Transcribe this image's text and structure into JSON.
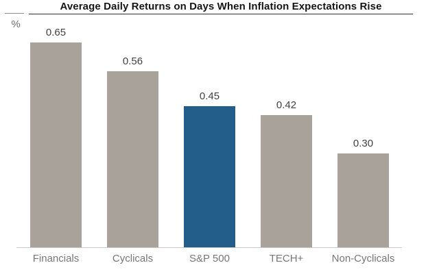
{
  "chart_data": {
    "type": "bar",
    "title": "Average Daily Returns on Days When Inflation Expectations Rise",
    "unit_label": "%",
    "categories": [
      "Financials",
      "Cyclicals",
      "S&P 500",
      "TECH+",
      "Non-Cyclicals"
    ],
    "values": [
      0.65,
      0.56,
      0.45,
      0.42,
      0.3
    ],
    "value_labels": [
      "0.65",
      "0.56",
      "0.45",
      "0.42",
      "0.30"
    ],
    "highlight_index": 2,
    "highlight_category": "S&P 500",
    "ylim": [
      0,
      0.73
    ],
    "grid": false,
    "legend": false,
    "colors": {
      "bar_default": "#a9a29b",
      "bar_highlight": "#235e8b",
      "value_label": "#404040",
      "category_label": "#757575",
      "axis_line": "#c9c9c9",
      "title": "#141414",
      "title_underline": "#2e2e2e",
      "tick_line": "#8f8f8f",
      "unit_label": "#6f6f6f"
    }
  }
}
